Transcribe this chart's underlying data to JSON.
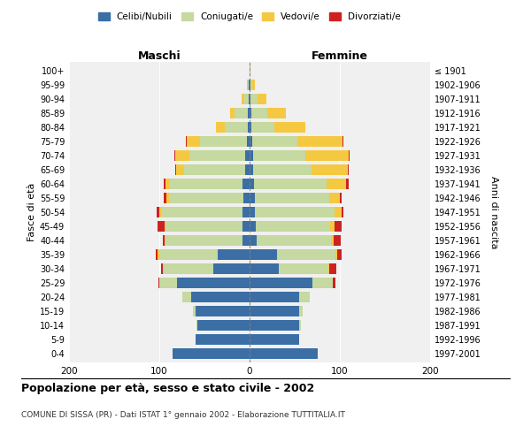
{
  "age_groups": [
    "0-4",
    "5-9",
    "10-14",
    "15-19",
    "20-24",
    "25-29",
    "30-34",
    "35-39",
    "40-44",
    "45-49",
    "50-54",
    "55-59",
    "60-64",
    "65-69",
    "70-74",
    "75-79",
    "80-84",
    "85-89",
    "90-94",
    "95-99",
    "100+"
  ],
  "birth_years": [
    "1997-2001",
    "1992-1996",
    "1987-1991",
    "1982-1986",
    "1977-1981",
    "1972-1976",
    "1967-1971",
    "1962-1966",
    "1957-1961",
    "1952-1956",
    "1947-1951",
    "1942-1946",
    "1937-1941",
    "1932-1936",
    "1927-1931",
    "1922-1926",
    "1917-1921",
    "1912-1916",
    "1907-1911",
    "1902-1906",
    "≤ 1901"
  ],
  "males": {
    "celibi": [
      85,
      60,
      58,
      60,
      65,
      80,
      40,
      35,
      8,
      8,
      8,
      7,
      8,
      5,
      5,
      3,
      2,
      2,
      1,
      1,
      0
    ],
    "coniugati": [
      0,
      0,
      1,
      3,
      10,
      20,
      55,
      65,
      85,
      85,
      90,
      82,
      80,
      68,
      62,
      52,
      25,
      15,
      5,
      1,
      0
    ],
    "vedovi": [
      0,
      0,
      0,
      0,
      0,
      0,
      1,
      2,
      1,
      1,
      2,
      3,
      5,
      8,
      15,
      15,
      10,
      5,
      3,
      1,
      0
    ],
    "divorziati": [
      0,
      0,
      0,
      0,
      0,
      1,
      2,
      2,
      2,
      8,
      3,
      3,
      2,
      1,
      1,
      1,
      0,
      0,
      0,
      0,
      0
    ]
  },
  "females": {
    "nubili": [
      75,
      55,
      55,
      55,
      55,
      70,
      32,
      30,
      8,
      7,
      6,
      6,
      5,
      4,
      4,
      3,
      2,
      2,
      1,
      1,
      0
    ],
    "coniugate": [
      0,
      0,
      2,
      4,
      12,
      22,
      55,
      65,
      82,
      82,
      88,
      82,
      80,
      65,
      58,
      50,
      25,
      18,
      8,
      2,
      0
    ],
    "vedove": [
      0,
      0,
      0,
      0,
      0,
      0,
      1,
      2,
      3,
      5,
      8,
      12,
      22,
      40,
      48,
      50,
      35,
      20,
      10,
      3,
      1
    ],
    "divorziate": [
      0,
      0,
      0,
      0,
      0,
      3,
      8,
      5,
      8,
      8,
      2,
      2,
      3,
      1,
      1,
      1,
      0,
      0,
      0,
      0,
      0
    ]
  },
  "colors": {
    "celibi": "#3a6ea5",
    "coniugati": "#c5d9a0",
    "vedovi": "#f5c842",
    "divorziati": "#cc2222"
  },
  "legend_labels": [
    "Celibi/Nubili",
    "Coniugati/e",
    "Vedovi/e",
    "Divorziati/e"
  ],
  "title": "Popolazione per età, sesso e stato civile - 2002",
  "subtitle": "COMUNE DI SISSA (PR) - Dati ISTAT 1° gennaio 2002 - Elaborazione TUTTITALIA.IT",
  "xlabel_left": "Maschi",
  "xlabel_right": "Femmine",
  "ylabel_left": "Fasce di età",
  "ylabel_right": "Anni di nascita",
  "xlim": 200,
  "background_color": "#ffffff",
  "plot_bg": "#f0f0f0"
}
